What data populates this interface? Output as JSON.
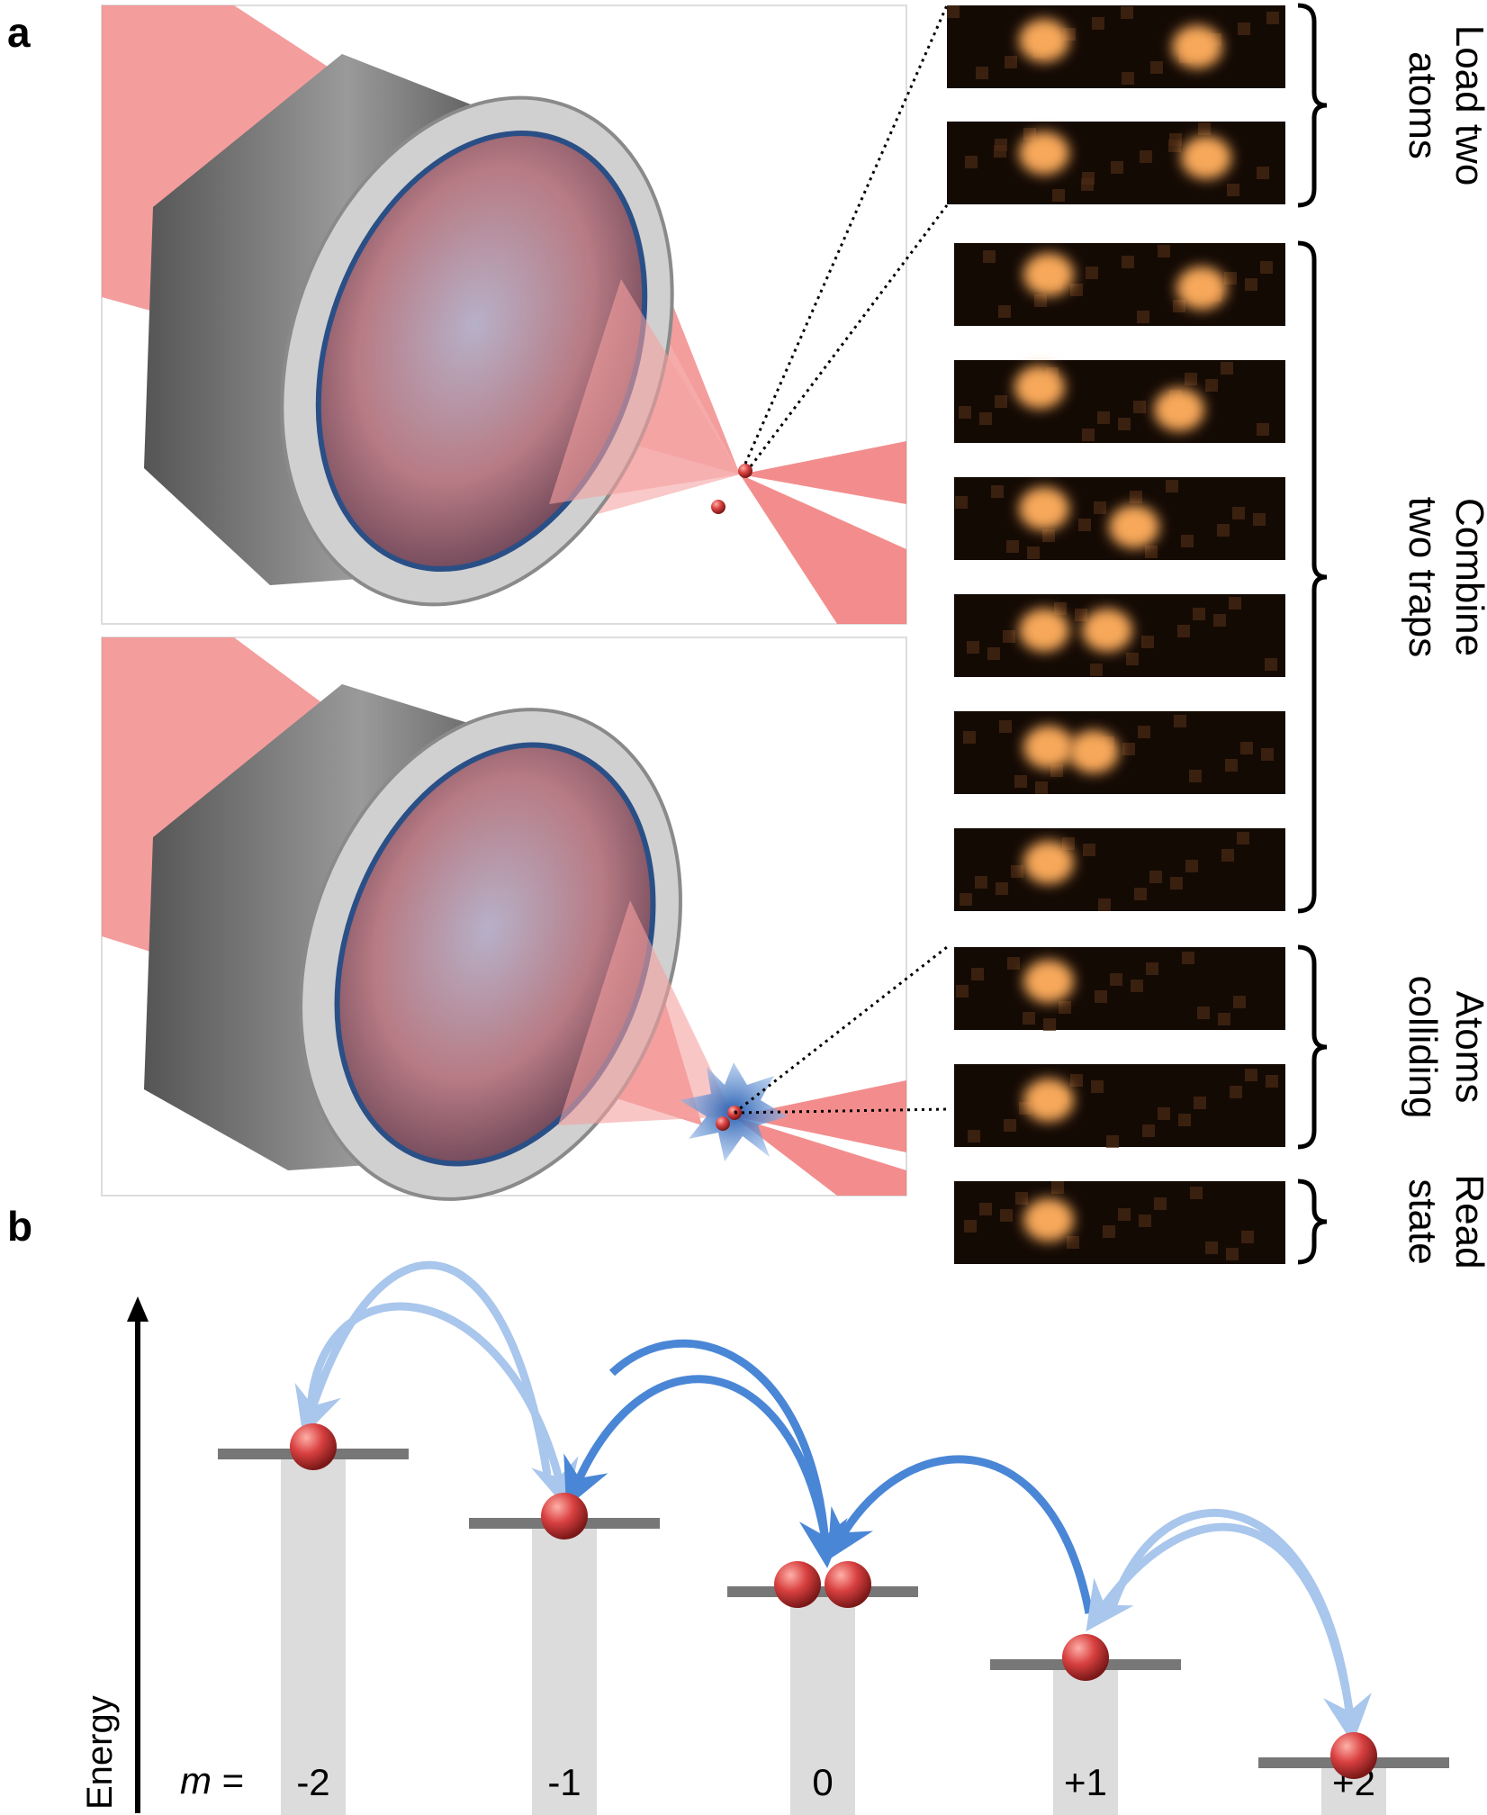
{
  "panel_a": {
    "label": "a",
    "groups": [
      {
        "label_lines": [
          "Load two",
          "atoms"
        ]
      },
      {
        "label_lines": [
          "Combine",
          "two traps"
        ]
      },
      {
        "label_lines": [
          "Atoms",
          "colliding"
        ]
      },
      {
        "label_lines": [
          "Read",
          "state"
        ]
      }
    ]
  },
  "panel_b": {
    "label": "b",
    "axis_label": "Energy",
    "m_label": "m =",
    "levels": [
      "-2",
      "-1",
      "0",
      "+1",
      "+2"
    ]
  }
}
